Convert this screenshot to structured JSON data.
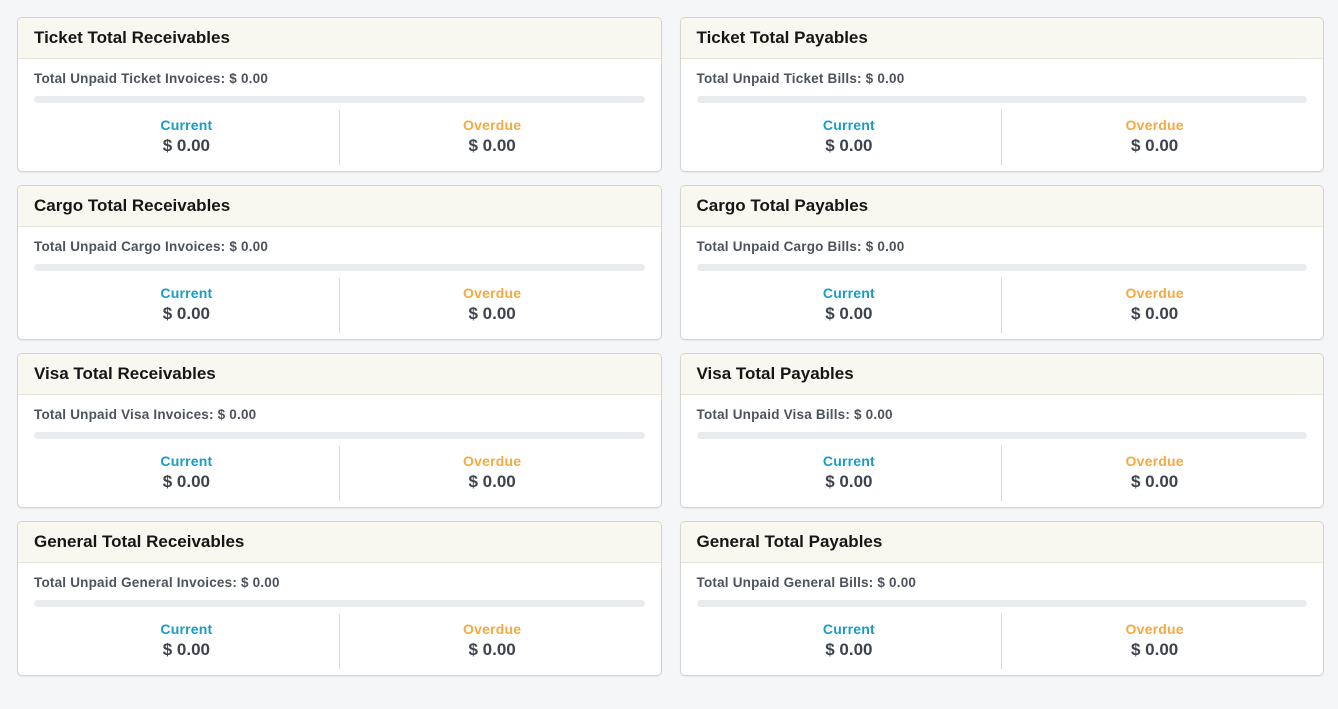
{
  "colors": {
    "current": "#1b9bc7",
    "overdue": "#f5a940",
    "page_background": "#f5f6f8",
    "card_header_background": "#f8f8f0",
    "progress_track": "#e9ecef",
    "value_text": "#3e444d"
  },
  "cards": [
    {
      "title": "Ticket Total Receivables",
      "summary": "Total Unpaid Ticket Invoices: $ 0.00",
      "current_label": "Current",
      "current_value": "$ 0.00",
      "overdue_label": "Overdue",
      "overdue_value": "$ 0.00"
    },
    {
      "title": "Ticket Total Payables",
      "summary": "Total Unpaid Ticket Bills: $ 0.00",
      "current_label": "Current",
      "current_value": "$ 0.00",
      "overdue_label": "Overdue",
      "overdue_value": "$ 0.00"
    },
    {
      "title": "Cargo Total Receivables",
      "summary": "Total Unpaid Cargo Invoices: $ 0.00",
      "current_label": "Current",
      "current_value": "$ 0.00",
      "overdue_label": "Overdue",
      "overdue_value": "$ 0.00"
    },
    {
      "title": "Cargo Total Payables",
      "summary": "Total Unpaid Cargo Bills: $ 0.00",
      "current_label": "Current",
      "current_value": "$ 0.00",
      "overdue_label": "Overdue",
      "overdue_value": "$ 0.00"
    },
    {
      "title": "Visa Total Receivables",
      "summary": "Total Unpaid Visa Invoices: $ 0.00",
      "current_label": "Current",
      "current_value": "$ 0.00",
      "overdue_label": "Overdue",
      "overdue_value": "$ 0.00"
    },
    {
      "title": "Visa Total Payables",
      "summary": "Total Unpaid Visa Bills: $ 0.00",
      "current_label": "Current",
      "current_value": "$ 0.00",
      "overdue_label": "Overdue",
      "overdue_value": "$ 0.00"
    },
    {
      "title": "General Total Receivables",
      "summary": "Total Unpaid General Invoices: $ 0.00",
      "current_label": "Current",
      "current_value": "$ 0.00",
      "overdue_label": "Overdue",
      "overdue_value": "$ 0.00"
    },
    {
      "title": "General Total Payables",
      "summary": "Total Unpaid General Bills: $ 0.00",
      "current_label": "Current",
      "current_value": "$ 0.00",
      "overdue_label": "Overdue",
      "overdue_value": "$ 0.00"
    }
  ]
}
